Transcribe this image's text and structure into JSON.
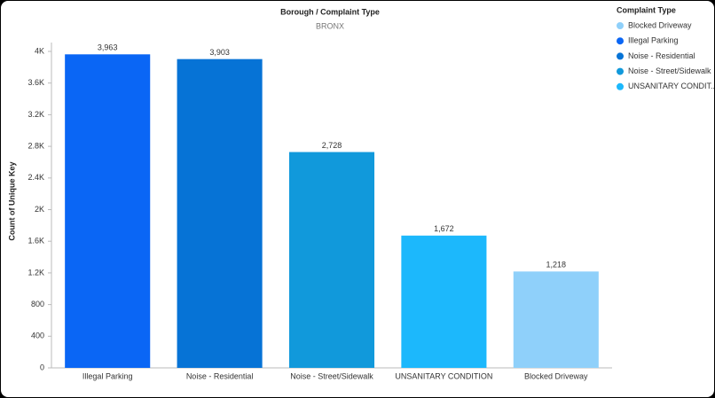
{
  "chart_data": {
    "type": "bar",
    "title": "Borough / Complaint Type",
    "subtitle": "BRONX",
    "y_label": "Count of Unique Key",
    "categories": [
      "Illegal Parking",
      "Noise - Residential",
      "Noise - Street/Sidewalk",
      "UNSANITARY CONDITION",
      "Blocked Driveway"
    ],
    "values": [
      3963,
      3903,
      2728,
      1672,
      1218
    ],
    "value_labels": [
      "3,963",
      "3,903",
      "2,728",
      "1,672",
      "1,218"
    ],
    "colors": [
      "#0a66f5",
      "#0673d6",
      "#1199db",
      "#1cb8fc",
      "#8fd0fa"
    ],
    "ylim": [
      0,
      4000
    ],
    "yticks": [
      0,
      400,
      800,
      {
        "value": 1200,
        "label": "1.2K"
      },
      {
        "value": 1600,
        "label": "1.6K"
      },
      {
        "value": 2000,
        "label": "2K"
      },
      {
        "value": 2400,
        "label": "2.4K"
      },
      {
        "value": 2800,
        "label": "2.8K"
      },
      {
        "value": 3200,
        "label": "3.2K"
      },
      {
        "value": 3600,
        "label": "3.6K"
      },
      {
        "value": 4000,
        "label": "4K"
      }
    ],
    "grid": false,
    "legend": {
      "position": "right",
      "title": "Complaint Type",
      "items": [
        {
          "label": "Blocked Driveway",
          "color": "#8fd0fa"
        },
        {
          "label": "Illegal Parking",
          "color": "#0a66f5"
        },
        {
          "label": "Noise - Residential",
          "color": "#0673d6"
        },
        {
          "label": "Noise - Street/Sidewalk",
          "color": "#1199db"
        },
        {
          "label": "UNSANITARY CONDIT...",
          "color": "#1cb8fc"
        }
      ]
    }
  }
}
